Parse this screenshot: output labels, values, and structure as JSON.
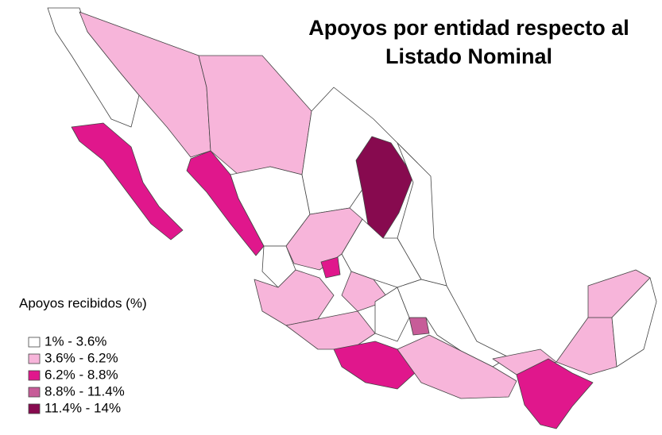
{
  "title": [
    "Apoyos por entidad respecto al",
    "Listado Nominal"
  ],
  "legend": {
    "title": "Apoyos recibidos (%)",
    "items": [
      {
        "label": "1% - 3.6%",
        "color": "#ffffff"
      },
      {
        "label": "3.6% - 6.2%",
        "color": "#f7b5da"
      },
      {
        "label": "6.2% - 8.8%",
        "color": "#e0178c"
      },
      {
        "label": "8.8% - 11.4%",
        "color": "#c75c98"
      },
      {
        "label": "11.4% - 14%",
        "color": "#870a4f"
      }
    ]
  }
}
